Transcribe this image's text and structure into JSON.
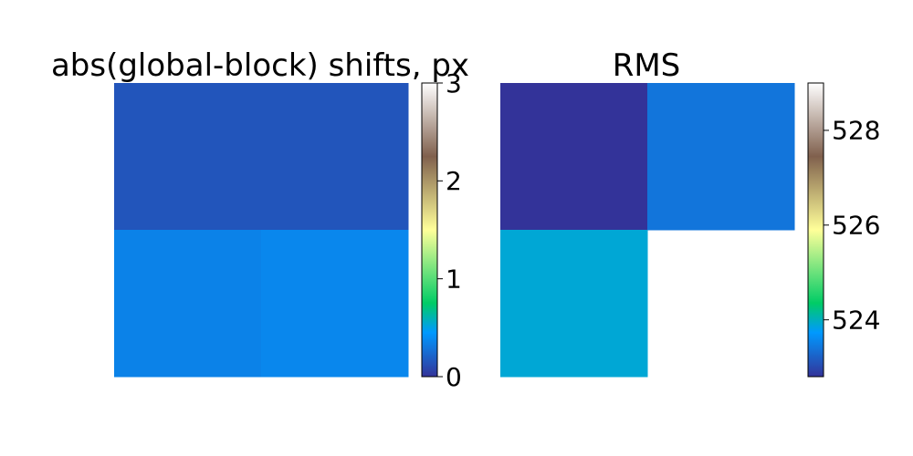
{
  "chart_data": [
    {
      "type": "heatmap",
      "title": "abs(global-block) shifts, px",
      "rows": 2,
      "cols": 2,
      "values": [
        [
          0.15,
          0.15
        ],
        [
          0.35,
          0.37
        ]
      ],
      "colorbar": {
        "colormap": "terrain",
        "vmin": 0,
        "vmax": 3,
        "ticks": [
          0,
          1,
          2,
          3
        ],
        "tick_labels": [
          "0",
          "1",
          "2",
          "3"
        ]
      }
    },
    {
      "type": "heatmap",
      "title": "RMS",
      "rows": 2,
      "cols": 2,
      "values": [
        [
          522.8,
          523.4
        ],
        [
          523.9,
          null
        ]
      ],
      "colorbar": {
        "colormap": "terrain",
        "vmin": 522.8,
        "vmax": 529,
        "ticks": [
          524,
          526,
          528
        ],
        "tick_labels": [
          "524",
          "526",
          "528"
        ]
      }
    }
  ]
}
